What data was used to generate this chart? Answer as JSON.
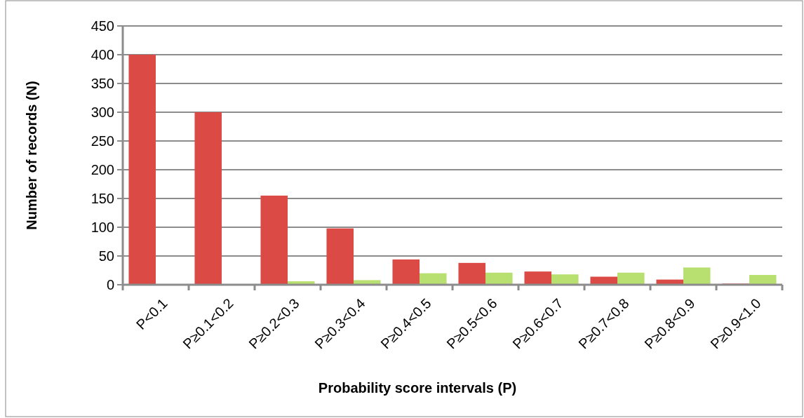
{
  "chart_data": {
    "type": "bar",
    "xlabel": "Probability score intervals (P)",
    "ylabel": "Number of records (N)",
    "categories": [
      "P<0.1",
      "P≥0.1<0.2",
      "P≥0.2<0.3",
      "P≥0.3<0.4",
      "P≥0.4<0.5",
      "P≥0.5<0.6",
      "P≥0.6<0.7",
      "P≥0.7<0.8",
      "P≥0.8<0.9",
      "P≥0.9<1.0"
    ],
    "series": [
      {
        "color": "#dc4a45",
        "values": [
          400,
          300,
          155,
          98,
          44,
          38,
          23,
          14,
          9,
          2
        ]
      },
      {
        "color": "#b8e070",
        "values": [
          0,
          0,
          6,
          8,
          20,
          21,
          18,
          21,
          30,
          17
        ]
      }
    ],
    "ylim": [
      0,
      450
    ],
    "yticks": [
      0,
      50,
      100,
      150,
      200,
      250,
      300,
      350,
      400,
      450
    ],
    "grid": "y"
  }
}
